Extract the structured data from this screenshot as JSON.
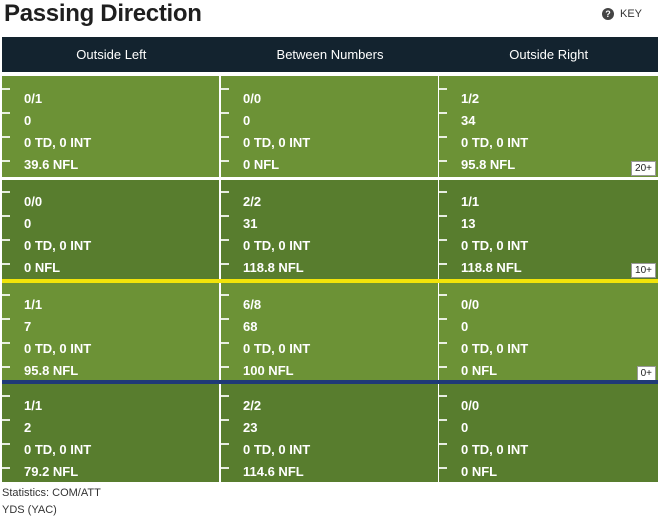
{
  "title": "Passing Direction",
  "key_label": "KEY",
  "key_icon": "?",
  "columns": [
    "Outside Left",
    "Between Numbers",
    "Outside Right"
  ],
  "zones": [
    {
      "label": "20+",
      "cells": [
        {
          "comp_att": "0/1",
          "yds": "0",
          "td_int": "0 TD, 0 INT",
          "rating": "39.6 NFL"
        },
        {
          "comp_att": "0/0",
          "yds": "0",
          "td_int": "0 TD, 0 INT",
          "rating": "0 NFL"
        },
        {
          "comp_att": "1/2",
          "yds": "34",
          "td_int": "0 TD, 0 INT",
          "rating": "95.8 NFL"
        }
      ]
    },
    {
      "label": "10+",
      "cells": [
        {
          "comp_att": "0/0",
          "yds": "0",
          "td_int": "0 TD, 0 INT",
          "rating": "0 NFL"
        },
        {
          "comp_att": "2/2",
          "yds": "31",
          "td_int": "0 TD, 0 INT",
          "rating": "118.8 NFL"
        },
        {
          "comp_att": "1/1",
          "yds": "13",
          "td_int": "0 TD, 0 INT",
          "rating": "118.8 NFL"
        }
      ]
    },
    {
      "label": "0+",
      "cells": [
        {
          "comp_att": "1/1",
          "yds": "7",
          "td_int": "0 TD, 0 INT",
          "rating": "95.8 NFL"
        },
        {
          "comp_att": "6/8",
          "yds": "68",
          "td_int": "0 TD, 0 INT",
          "rating": "100 NFL"
        },
        {
          "comp_att": "0/0",
          "yds": "0",
          "td_int": "0 TD, 0 INT",
          "rating": "0 NFL"
        }
      ]
    },
    {
      "label": "",
      "cells": [
        {
          "comp_att": "1/1",
          "yds": "2",
          "td_int": "0 TD, 0 INT",
          "rating": "79.2 NFL"
        },
        {
          "comp_att": "2/2",
          "yds": "23",
          "td_int": "0 TD, 0 INT",
          "rating": "114.6 NFL"
        },
        {
          "comp_att": "0/0",
          "yds": "0",
          "td_int": "0 TD, 0 INT",
          "rating": "0 NFL"
        }
      ]
    }
  ],
  "footer": {
    "line1": "Statistics: COM/ATT",
    "line2": "YDS (YAC)"
  },
  "colors": {
    "header_bg": "#13232f",
    "turf_light": "#6c9236",
    "turf_dark": "#587d2e",
    "line_of_scrimmage": "#1f3a78",
    "first_down_line": "#f2e40a"
  }
}
